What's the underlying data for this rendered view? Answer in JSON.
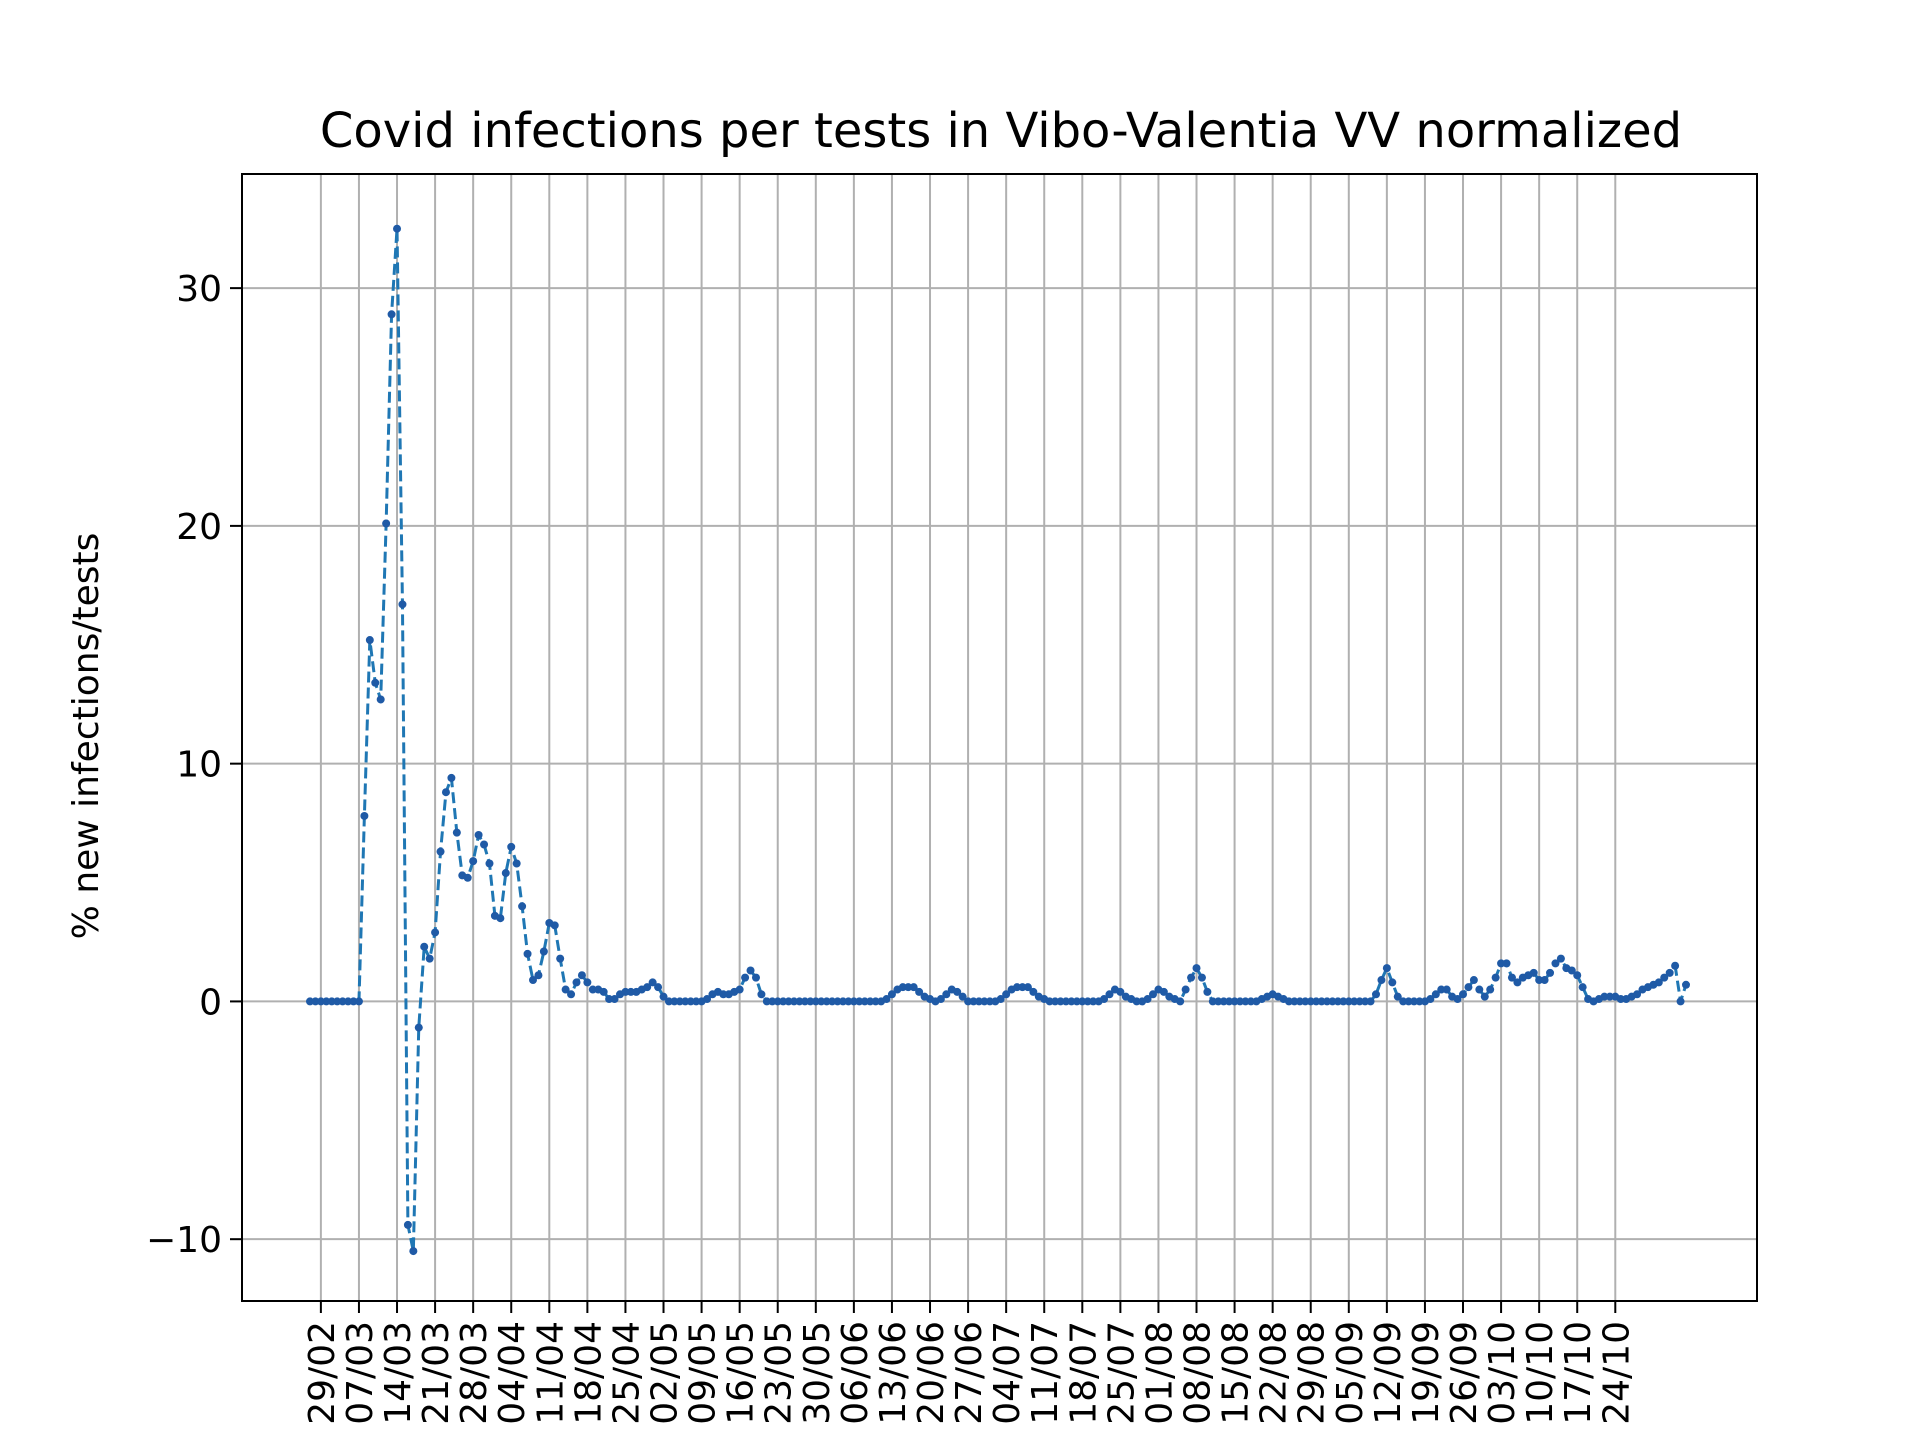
{
  "chart_data": {
    "type": "line",
    "title": "Covid infections per tests in Vibo-Valentia VV normalized",
    "xlabel": "",
    "ylabel": "% new infections/tests",
    "ylim": [
      -12.6,
      34.8
    ],
    "yticks": [
      -10,
      0,
      10,
      20,
      30
    ],
    "ytick_labels": [
      "−10",
      "0",
      "10",
      "20",
      "30"
    ],
    "xticks": [
      "29/02",
      "07/03",
      "14/03",
      "21/03",
      "28/03",
      "04/04",
      "11/04",
      "18/04",
      "25/04",
      "02/05",
      "09/05",
      "16/05",
      "23/05",
      "30/05",
      "06/06",
      "13/06",
      "20/06",
      "27/06",
      "04/07",
      "11/07",
      "18/07",
      "25/07",
      "01/08",
      "08/08",
      "15/08",
      "22/08",
      "29/08",
      "05/09",
      "12/09",
      "19/09",
      "26/09",
      "03/10",
      "10/10",
      "17/10",
      "24/10"
    ],
    "grid": true,
    "legend": "none",
    "colors": {
      "line": "#1f77b4",
      "marker": "#1f5aa6",
      "grid": "#b0b0b0"
    },
    "x_start": "27/02",
    "series": [
      {
        "values": [
          0,
          0,
          0,
          0,
          0,
          0,
          0,
          0,
          0,
          0,
          7.8,
          15.2,
          13.4,
          12.7,
          20.1,
          28.9,
          32.5,
          16.7,
          -9.4,
          -10.5,
          -1.1,
          2.3,
          1.8,
          2.9,
          6.3,
          8.8,
          9.4,
          7.1,
          5.3,
          5.2,
          5.9,
          7.0,
          6.6,
          5.8,
          3.6,
          3.5,
          5.4,
          6.5,
          5.8,
          4.0,
          2.0,
          0.9,
          1.1,
          2.1,
          3.3,
          3.2,
          1.8,
          0.5,
          0.3,
          0.8,
          1.1,
          0.8,
          0.5,
          0.5,
          0.4,
          0.1,
          0.1,
          0.3,
          0.4,
          0.4,
          0.4,
          0.5,
          0.6,
          0.8,
          0.6,
          0.2,
          0,
          0,
          0,
          0,
          0,
          0,
          0,
          0.1,
          0.3,
          0.4,
          0.3,
          0.3,
          0.4,
          0.5,
          1.0,
          1.3,
          1.0,
          0.3,
          0,
          0,
          0,
          0,
          0,
          0,
          0,
          0,
          0,
          0,
          0,
          0,
          0,
          0,
          0,
          0,
          0,
          0,
          0,
          0,
          0,
          0,
          0.1,
          0.3,
          0.5,
          0.6,
          0.6,
          0.6,
          0.4,
          0.2,
          0.1,
          0,
          0.1,
          0.3,
          0.5,
          0.4,
          0.2,
          0,
          0,
          0,
          0,
          0,
          0,
          0.1,
          0.3,
          0.5,
          0.6,
          0.6,
          0.6,
          0.4,
          0.2,
          0.1,
          0,
          0,
          0,
          0,
          0,
          0,
          0,
          0,
          0,
          0,
          0.1,
          0.3,
          0.5,
          0.4,
          0.2,
          0.1,
          0,
          0,
          0.1,
          0.3,
          0.5,
          0.4,
          0.2,
          0.1,
          0,
          0.5,
          1.0,
          1.4,
          1.0,
          0.4,
          0,
          0,
          0,
          0,
          0,
          0,
          0,
          0,
          0,
          0.1,
          0.2,
          0.3,
          0.2,
          0.1,
          0,
          0,
          0,
          0,
          0,
          0,
          0,
          0,
          0,
          0,
          0,
          0,
          0,
          0,
          0,
          0,
          0.3,
          0.9,
          1.4,
          0.8,
          0.2,
          0,
          0,
          0,
          0,
          0,
          0.1,
          0.3,
          0.5,
          0.5,
          0.2,
          0.1,
          0.3,
          0.6,
          0.9,
          0.5,
          0.2,
          0.5,
          1.0,
          1.6,
          1.6,
          1.0,
          0.8,
          1.0,
          1.1,
          1.2,
          0.9,
          0.9,
          1.2,
          1.6,
          1.8,
          1.4,
          1.3,
          1.1,
          0.6,
          0.1,
          0,
          0.1,
          0.2,
          0.2,
          0.2,
          0.1,
          0.1,
          0.2,
          0.3,
          0.5,
          0.6,
          0.7,
          0.8,
          1.0,
          1.2,
          1.5,
          0,
          0.7
        ]
      }
    ]
  }
}
